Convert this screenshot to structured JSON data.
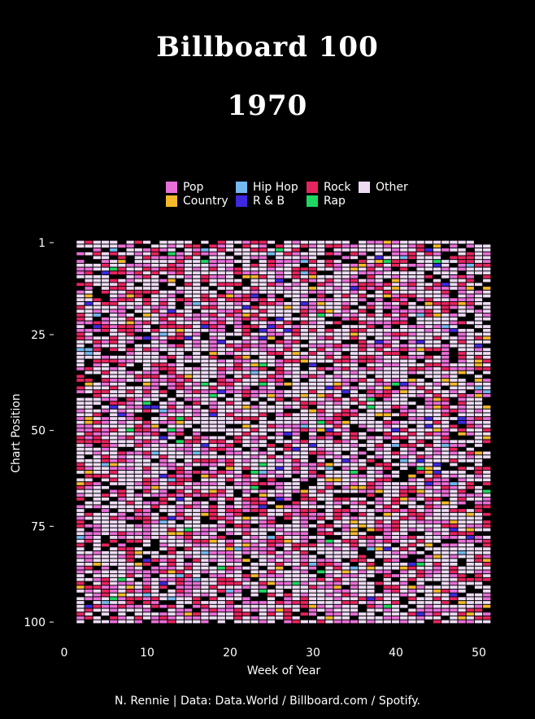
{
  "title": "Billboard 100",
  "subtitle": "1970",
  "caption": "N. Rennie | Data: Data.World / Billboard.com / Spotify.",
  "legend": [
    {
      "label": "Pop",
      "color": "#E86FD8"
    },
    {
      "label": "Hip Hop",
      "color": "#74B9F0"
    },
    {
      "label": "Rock",
      "color": "#E6245E"
    },
    {
      "label": "Other",
      "color": "#EEDCF5"
    },
    {
      "label": "Country",
      "color": "#F5B82A"
    },
    {
      "label": "R & B",
      "color": "#3E28E0"
    },
    {
      "label": "Rap",
      "color": "#1ED760"
    }
  ],
  "chart_data": {
    "type": "heatmap",
    "xlabel": "Week of Year",
    "ylabel": "Chart Position",
    "x_ticks": [
      "0",
      "10",
      "20",
      "30",
      "40",
      "50"
    ],
    "y_ticks": [
      "1",
      "25",
      "50",
      "75",
      "100"
    ],
    "xlim": [
      0,
      53
    ],
    "ylim": [
      1,
      100
    ],
    "weeks": [
      2,
      51
    ],
    "positions": [
      1,
      100
    ],
    "cell_values": "genre per week and chart position (Pop, Hip Hop, Rock, Other, Country, R & B, Rap; missing = no genre data)",
    "categories": [
      "Pop",
      "Hip Hop",
      "Rock",
      "Other",
      "Country",
      "R & B",
      "Rap"
    ],
    "approx_share": {
      "Other": 0.46,
      "Pop": 0.2,
      "Rock": 0.16,
      "missing": 0.12,
      "Country": 0.03,
      "R & B": 0.015,
      "Hip Hop": 0.01,
      "Rap": 0.005
    }
  }
}
